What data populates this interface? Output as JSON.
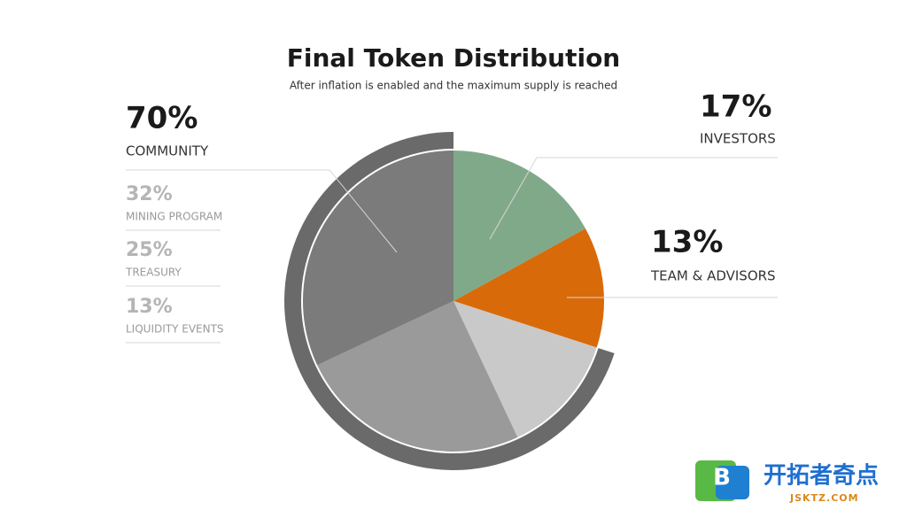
{
  "chart_data": {
    "type": "pie",
    "title": "Final Token Distribution",
    "subtitle": "After inflation is enabled and the maximum supply is reached",
    "categories": [
      "INVESTORS",
      "TEAM & ADVISORS",
      "LIQUIDITY EVENTS",
      "TREASURY",
      "MINING PROGRAM"
    ],
    "values": [
      17,
      13,
      13,
      25,
      32
    ],
    "value_labels": [
      "17%",
      "13%",
      "13%",
      "25%",
      "32%"
    ],
    "colors": [
      "#80a98a",
      "#d96a0a",
      "#c9c9c9",
      "#9a9a9a",
      "#7b7b7b"
    ],
    "group": {
      "name": "COMMUNITY",
      "value": 70,
      "value_label": "70%",
      "color": "#6a6a6a"
    }
  },
  "watermark": {
    "logo": "B",
    "name": "开拓者奇点",
    "site": "JSKTZ.COM"
  }
}
